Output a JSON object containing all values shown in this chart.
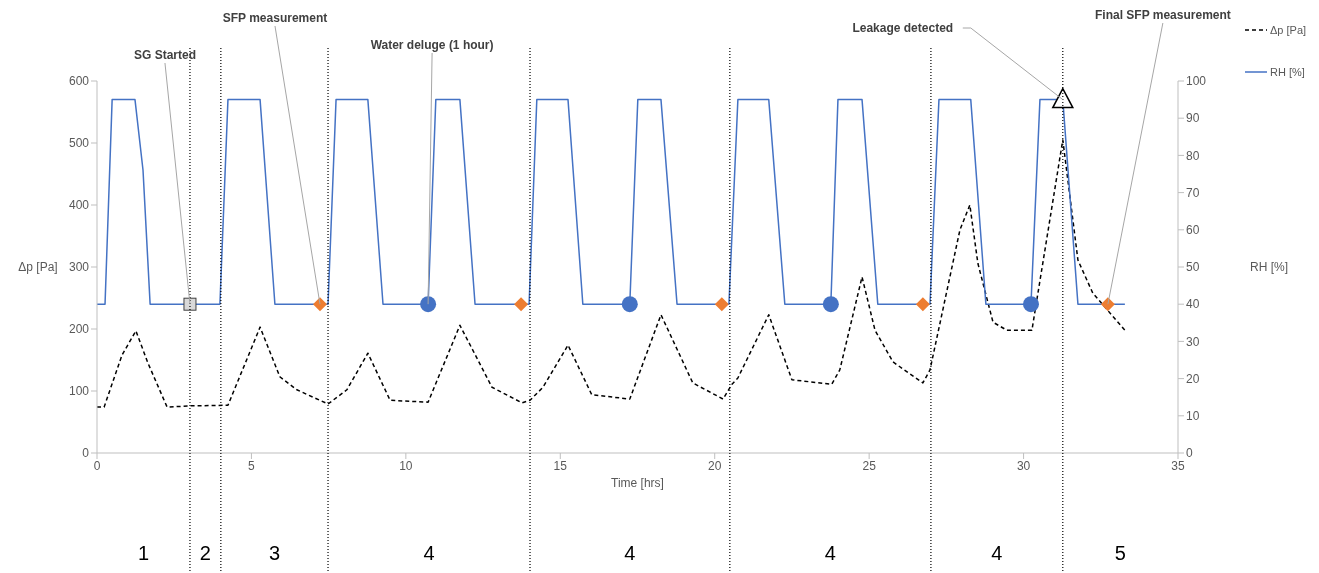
{
  "chart_data": {
    "type": "line",
    "xlabel": "Time [hrs]",
    "ylabel": "Δp [Pa]",
    "y2label": "RH [%]",
    "xlim": [
      0,
      35
    ],
    "xticks": [
      0,
      5,
      10,
      15,
      20,
      25,
      30,
      35
    ],
    "ylim": [
      0,
      600
    ],
    "yticks": [
      0,
      100,
      200,
      300,
      400,
      500,
      600
    ],
    "y2lim": [
      0,
      100
    ],
    "y2ticks": [
      0,
      10,
      20,
      30,
      40,
      50,
      60,
      70,
      80,
      90,
      100
    ],
    "grid": false,
    "legend": "top right",
    "series": [
      {
        "name": "Δp [Pa]",
        "color": "#000000",
        "line_style": "dashed",
        "x": [
          0,
          0.23,
          0.81,
          1.26,
          1.65,
          2.27,
          3.01,
          4.24,
          5.28,
          5.92,
          6.47,
          7.48,
          8.09,
          8.77,
          9.49,
          10.72,
          11.75,
          12.79,
          13.76,
          14.02,
          14.44,
          15.25,
          16.02,
          17.25,
          18.26,
          19.29,
          20.27,
          20.56,
          20.75,
          21.75,
          22.5,
          23.79,
          24.05,
          24.77,
          25.19,
          25.77,
          26.74,
          26.97,
          27.94,
          28.26,
          28.52,
          29.01,
          29.46,
          30.27,
          31.27,
          31.76,
          32.24,
          33.28
        ],
        "values": [
          74,
          74,
          158,
          197,
          145,
          74,
          76,
          77,
          203,
          123,
          102,
          79,
          102,
          161,
          85,
          82,
          206,
          106,
          81,
          85,
          106,
          174,
          94,
          87,
          223,
          113,
          87,
          111,
          121,
          223,
          118,
          111,
          134,
          284,
          198,
          147,
          113,
          134,
          360,
          400,
          306,
          211,
          198,
          198,
          505,
          311,
          258,
          198
        ]
      },
      {
        "name": "RH [%]",
        "color": "#4472c4",
        "line_style": "solid",
        "axis": "y2",
        "x": [
          0,
          0.26,
          0.49,
          1.23,
          1.49,
          1.72,
          3.98,
          4.24,
          5.28,
          5.76,
          7.48,
          7.74,
          8.77,
          9.26,
          10.72,
          10.97,
          11.75,
          12.24,
          13.99,
          14.24,
          15.25,
          15.73,
          17.25,
          17.51,
          18.26,
          18.78,
          20.46,
          20.75,
          21.75,
          22.27,
          23.76,
          23.99,
          24.77,
          25.28,
          26.97,
          27.26,
          28.29,
          28.78,
          30.24,
          30.53,
          31.27,
          31.76,
          33.28
        ],
        "values": [
          40,
          40,
          95,
          95,
          76,
          40,
          40,
          95,
          95,
          40,
          40,
          95,
          95,
          40,
          40,
          95,
          95,
          40,
          40,
          95,
          95,
          40,
          40,
          95,
          95,
          40,
          40,
          95,
          95,
          40,
          40,
          95,
          95,
          40,
          40,
          95,
          95,
          40,
          40,
          95,
          95,
          40,
          40
        ]
      },
      {
        "type": "scatter",
        "axis": "y2",
        "marker": "square",
        "color": "#d9d9d9",
        "x": [
          3.01
        ],
        "values": [
          40
        ]
      },
      {
        "type": "scatter",
        "axis": "y2",
        "marker": "diamond",
        "color": "#ed7d31",
        "x": [
          7.22,
          13.73,
          20.23,
          26.74,
          32.73
        ],
        "values": [
          40,
          40,
          40,
          40,
          40
        ]
      },
      {
        "type": "scatter",
        "axis": "y2",
        "marker": "circle",
        "color": "#4472c4",
        "x": [
          10.72,
          17.25,
          23.76,
          30.24
        ],
        "values": [
          40,
          40,
          40,
          40
        ]
      },
      {
        "type": "scatter",
        "axis": "y2",
        "marker": "triangle",
        "color": "#ffffff",
        "x": [
          31.27
        ],
        "values": [
          95
        ]
      }
    ],
    "ref_lines": [
      {
        "axis": "x",
        "value": 3.01,
        "label": null,
        "color": "#000000",
        "line_style": "dotted"
      },
      {
        "axis": "x",
        "value": 4.01,
        "label": null,
        "color": "#000000",
        "line_style": "dotted"
      },
      {
        "axis": "x",
        "value": 7.48,
        "label": null,
        "color": "#000000",
        "line_style": "dotted"
      },
      {
        "axis": "x",
        "value": 14.02,
        "label": null,
        "color": "#000000",
        "line_style": "dotted"
      },
      {
        "axis": "x",
        "value": 20.49,
        "label": null,
        "color": "#000000",
        "line_style": "dotted"
      },
      {
        "axis": "x",
        "value": 27.0,
        "label": null,
        "color": "#000000",
        "line_style": "dotted"
      },
      {
        "axis": "x",
        "value": 31.27,
        "label": null,
        "color": "#000000",
        "line_style": "dotted"
      }
    ],
    "annotations": [
      {
        "text": "SG Started",
        "x": 3.01,
        "y": 240
      },
      {
        "text": "SFP measurement",
        "x": 7.22,
        "y": 240
      },
      {
        "text": "Water deluge (1 hour)",
        "x": 10.72,
        "y": 240
      },
      {
        "text": "Leakage detected",
        "x": 31.27,
        "y": 570
      },
      {
        "text": "Final SFP measurement",
        "x": 32.73,
        "y": 240
      },
      "1",
      "2",
      "3",
      "4",
      "4",
      "4",
      "4",
      "5"
    ]
  }
}
